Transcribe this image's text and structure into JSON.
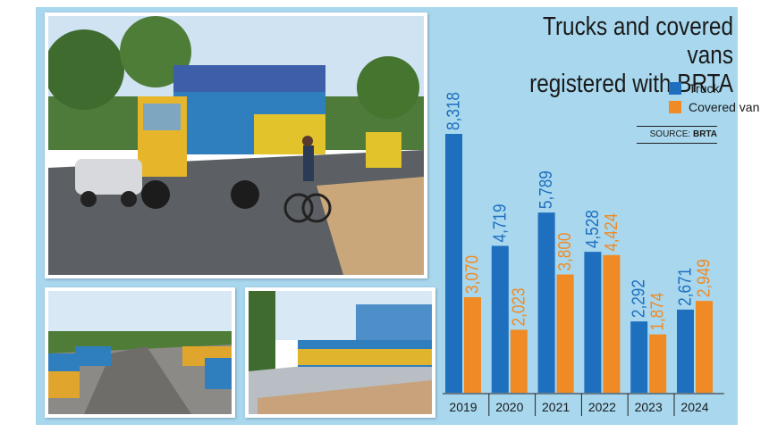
{
  "chart_data": {
    "type": "bar",
    "title": "Trucks and covered vans registered with BRTA",
    "title_lines": [
      "Trucks and covered vans",
      "registered with BRTA"
    ],
    "source_label": "SOURCE:",
    "source_name": "BRTA",
    "categories": [
      "2019",
      "2020",
      "2021",
      "2022",
      "2023",
      "2024"
    ],
    "series": [
      {
        "name": "Truck",
        "color": "#1f6fbf",
        "values": [
          8318,
          4719,
          5789,
          4528,
          2292,
          2671
        ],
        "labels": [
          "8,318",
          "4,719",
          "5,789",
          "4,528",
          "2,292",
          "2,671"
        ]
      },
      {
        "name": "Covered van",
        "color": "#f08a24",
        "values": [
          3070,
          2023,
          3800,
          4424,
          1874,
          2949
        ],
        "labels": [
          "3,070",
          "2,023",
          "3,800",
          "4,424",
          "1,874",
          "2,949"
        ]
      }
    ],
    "ylim": [
      0,
      8318
    ],
    "xlabel": "",
    "ylabel": "",
    "grid": false,
    "legend_position": "top-right",
    "data_labels": "above bars, rotated vertical"
  },
  "colors": {
    "background": "#a8d7ee",
    "truck": "#1f6fbf",
    "covered_van": "#f08a24"
  },
  "photos": [
    "truck-on-road-photo",
    "parked-trucks-road-photo-1",
    "parked-trucks-road-photo-2"
  ]
}
